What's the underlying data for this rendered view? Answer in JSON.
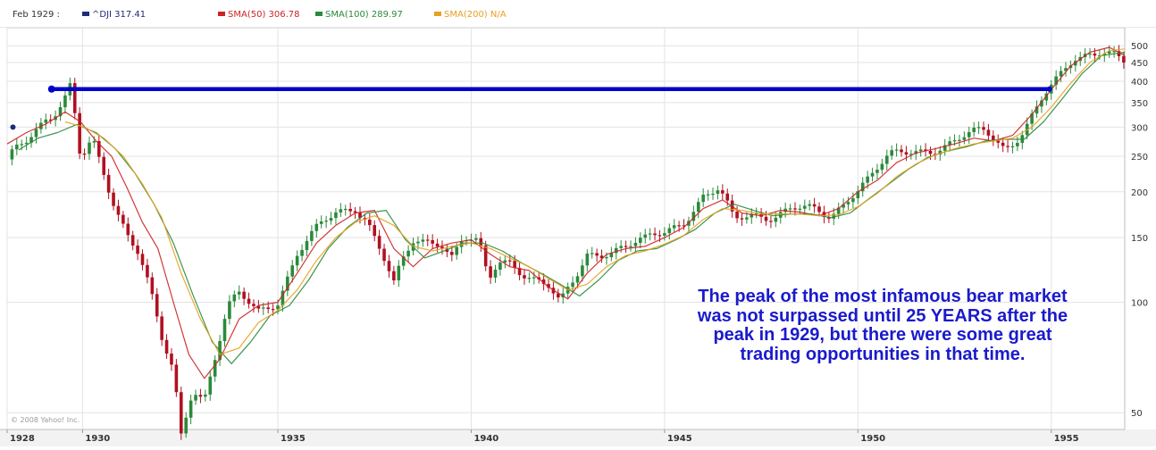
{
  "legend": {
    "date_label": "Feb 1929 :",
    "dji_label": "^DJI 317.41",
    "sma50_label": "SMA(50) 306.78",
    "sma100_label": "SMA(100) 289.97",
    "sma200_label": "SMA(200) N/A"
  },
  "colors": {
    "dji": "#1f2a7a",
    "sma50": "#cc2222",
    "sma100": "#2a8a3a",
    "sma200": "#e8a020",
    "up_candle": "#2a8a3a",
    "down_candle": "#b01020",
    "peak_line": "#0000cc",
    "callout_text": "#1a1acc"
  },
  "annotation": {
    "lines": [
      "The peak of the most infamous bear market",
      "was not surpassed until 25 YEARS after the",
      "peak in 1929, but there were some great",
      "trading opportunities in that time."
    ]
  },
  "copyright": "© 2008 Yahoo! Inc.",
  "chart_data": {
    "type": "line",
    "y_scale": "log",
    "ylim": [
      45,
      560
    ],
    "xlim": [
      1928.0,
      1956.9
    ],
    "y_ticks": [
      500,
      450,
      400,
      350,
      300,
      250,
      200,
      150,
      100,
      50
    ],
    "x_ticks": [
      {
        "label": "1928",
        "x": 1928.0
      },
      {
        "label": "1930",
        "x": 1929.95
      },
      {
        "label": "1935",
        "x": 1935.0
      },
      {
        "label": "1940",
        "x": 1940.0
      },
      {
        "label": "1945",
        "x": 1945.0
      },
      {
        "label": "1950",
        "x": 1950.0
      },
      {
        "label": "1955",
        "x": 1955.0
      }
    ],
    "grid": true,
    "series": [
      {
        "name": "^DJI",
        "x": [
          1928.0,
          1928.3,
          1928.7,
          1929.0,
          1929.2,
          1929.45,
          1929.65,
          1929.9,
          1930.2,
          1930.5,
          1930.8,
          1931.1,
          1931.4,
          1931.7,
          1932.0,
          1932.3,
          1932.5,
          1932.8,
          1933.1,
          1933.4,
          1933.7,
          1934.0,
          1934.5,
          1935.0,
          1935.5,
          1936.0,
          1936.5,
          1937.0,
          1937.3,
          1937.7,
          1938.0,
          1938.2,
          1938.5,
          1938.9,
          1939.2,
          1939.5,
          1939.8,
          1940.2,
          1940.45,
          1940.7,
          1941.0,
          1941.5,
          1942.0,
          1942.3,
          1942.7,
          1943.0,
          1943.5,
          1944.0,
          1944.5,
          1945.0,
          1945.5,
          1946.0,
          1946.4,
          1946.8,
          1947.3,
          1947.8,
          1948.3,
          1948.8,
          1949.3,
          1949.8,
          1950.3,
          1950.8,
          1951.3,
          1951.8,
          1952.3,
          1952.8,
          1953.3,
          1953.8,
          1954.3,
          1954.8,
          1955.2,
          1955.6,
          1956.0,
          1956.3,
          1956.6,
          1956.9
        ],
        "y": [
          245,
          275,
          300,
          317,
          320,
          340,
          381,
          240,
          280,
          230,
          185,
          155,
          135,
          105,
          78,
          65,
          44,
          60,
          55,
          72,
          95,
          103,
          95,
          103,
          135,
          155,
          175,
          185,
          170,
          135,
          110,
          125,
          145,
          148,
          150,
          135,
          150,
          142,
          112,
          128,
          130,
          120,
          110,
          97,
          115,
          135,
          140,
          142,
          145,
          155,
          170,
          195,
          200,
          165,
          175,
          175,
          180,
          175,
          170,
          200,
          220,
          245,
          255,
          265,
          270,
          280,
          290,
          265,
          300,
          360,
          400,
          460,
          485,
          500,
          480,
          445
        ]
      },
      {
        "name": "SMA(50)",
        "x": [
          1928.0,
          1928.5,
          1929.0,
          1929.5,
          1929.9,
          1930.3,
          1930.7,
          1931.1,
          1931.5,
          1931.9,
          1932.3,
          1932.7,
          1933.1,
          1933.5,
          1934.0,
          1934.5,
          1935.0,
          1935.5,
          1936.0,
          1936.5,
          1937.0,
          1937.5,
          1938.0,
          1938.5,
          1939.0,
          1939.5,
          1940.0,
          1940.5,
          1941.0,
          1941.5,
          1942.0,
          1942.5,
          1943.0,
          1943.5,
          1944.0,
          1944.5,
          1945.0,
          1945.5,
          1946.0,
          1946.5,
          1947.0,
          1947.5,
          1948.0,
          1948.5,
          1949.0,
          1949.5,
          1950.0,
          1950.5,
          1951.0,
          1951.5,
          1952.0,
          1952.5,
          1953.0,
          1953.5,
          1954.0,
          1954.5,
          1955.0,
          1955.5,
          1956.0,
          1956.5,
          1956.9
        ],
        "y": [
          270,
          290,
          306,
          330,
          310,
          275,
          250,
          205,
          165,
          140,
          100,
          72,
          62,
          70,
          90,
          98,
          100,
          120,
          145,
          162,
          175,
          178,
          140,
          125,
          140,
          145,
          148,
          135,
          125,
          122,
          110,
          102,
          120,
          135,
          140,
          142,
          150,
          160,
          180,
          190,
          175,
          172,
          178,
          176,
          172,
          180,
          200,
          215,
          240,
          255,
          262,
          270,
          280,
          275,
          285,
          325,
          380,
          440,
          480,
          495,
          470
        ]
      },
      {
        "name": "SMA(100)",
        "x": [
          1928.3,
          1928.8,
          1929.3,
          1929.8,
          1930.3,
          1930.8,
          1931.3,
          1931.8,
          1932.3,
          1932.8,
          1933.3,
          1933.8,
          1934.3,
          1934.8,
          1935.3,
          1935.8,
          1936.3,
          1936.8,
          1937.3,
          1937.8,
          1938.3,
          1938.8,
          1939.3,
          1939.8,
          1940.3,
          1940.8,
          1941.3,
          1941.8,
          1942.3,
          1942.8,
          1943.3,
          1943.8,
          1944.3,
          1944.8,
          1945.3,
          1945.8,
          1946.3,
          1946.8,
          1947.3,
          1947.8,
          1948.3,
          1948.8,
          1949.3,
          1949.8,
          1950.3,
          1950.8,
          1951.3,
          1951.8,
          1952.3,
          1952.8,
          1953.3,
          1953.8,
          1954.3,
          1954.8,
          1955.3,
          1955.8,
          1956.3,
          1956.9
        ],
        "y": [
          260,
          280,
          290,
          305,
          290,
          262,
          225,
          185,
          145,
          105,
          78,
          68,
          78,
          92,
          98,
          115,
          140,
          160,
          175,
          178,
          148,
          132,
          138,
          145,
          145,
          138,
          128,
          120,
          112,
          104,
          115,
          130,
          138,
          140,
          148,
          158,
          175,
          185,
          178,
          172,
          174,
          174,
          170,
          175,
          192,
          210,
          230,
          248,
          258,
          265,
          275,
          278,
          278,
          310,
          360,
          420,
          470,
          480
        ]
      },
      {
        "name": "SMA(200)",
        "x": [
          1929.5,
          1930.0,
          1930.5,
          1931.0,
          1931.5,
          1932.0,
          1932.5,
          1933.0,
          1933.5,
          1934.0,
          1934.5,
          1935.0,
          1935.5,
          1936.0,
          1936.5,
          1937.0,
          1937.5,
          1938.0,
          1938.5,
          1939.0,
          1939.5,
          1940.0,
          1940.5,
          1941.0,
          1941.5,
          1942.0,
          1942.5,
          1943.0,
          1943.5,
          1944.0,
          1944.5,
          1945.0,
          1945.5,
          1946.0,
          1946.5,
          1947.0,
          1947.5,
          1948.0,
          1948.5,
          1949.0,
          1949.5,
          1950.0,
          1950.5,
          1951.0,
          1951.5,
          1952.0,
          1952.5,
          1953.0,
          1953.5,
          1954.0,
          1954.5,
          1955.0,
          1955.5,
          1956.0,
          1956.5,
          1956.9
        ],
        "y": [
          310,
          300,
          280,
          250,
          210,
          170,
          120,
          90,
          72,
          75,
          88,
          95,
          108,
          130,
          150,
          165,
          172,
          162,
          142,
          138,
          142,
          145,
          140,
          132,
          125,
          116,
          108,
          112,
          125,
          134,
          138,
          144,
          152,
          168,
          180,
          178,
          174,
          174,
          174,
          172,
          173,
          182,
          198,
          220,
          238,
          252,
          262,
          270,
          275,
          280,
          300,
          340,
          395,
          450,
          485,
          490
        ]
      }
    ],
    "peak_line": {
      "x": [
        1929.15,
        1954.95
      ],
      "y": 381
    }
  }
}
